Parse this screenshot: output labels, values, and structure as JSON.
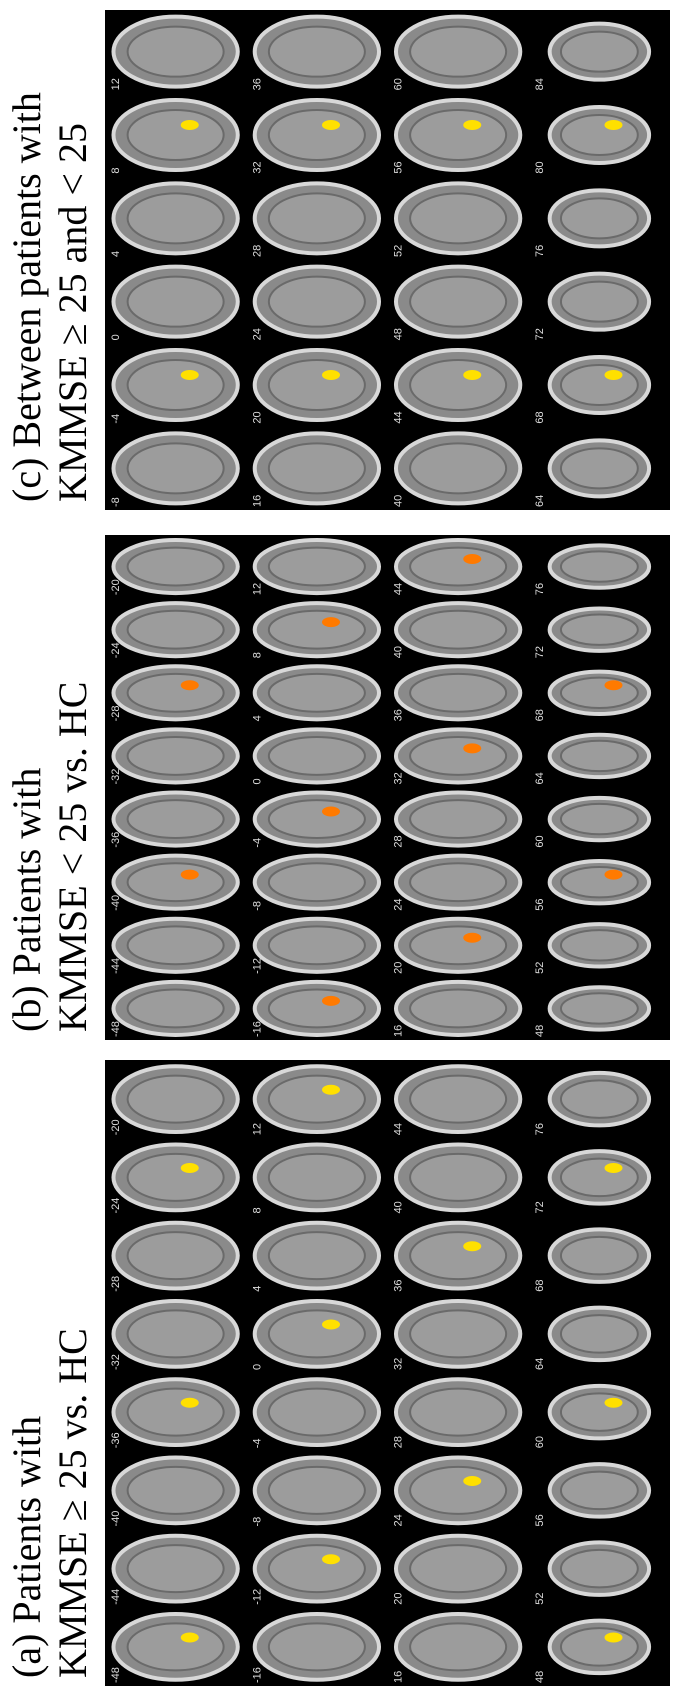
{
  "panels": [
    {
      "title": "(a) Patients with",
      "subtitle": "KMMSE ≥ 25 vs.  HC",
      "slices": [
        "-48",
        "-44",
        "-40",
        "-36",
        "-32",
        "-28",
        "-24",
        "-20",
        "-16",
        "-12",
        "-8",
        "-4",
        "0",
        "4",
        "8",
        "12",
        "16",
        "20",
        "24",
        "28",
        "32",
        "36",
        "40",
        "44",
        "48",
        "52",
        "56",
        "60",
        "64",
        "68",
        "72",
        "76"
      ]
    },
    {
      "title": "(b) Patients with",
      "subtitle": "KMMSE < 25 vs.  HC",
      "slices": [
        "-48",
        "-44",
        "-40",
        "-36",
        "-32",
        "-28",
        "-24",
        "-20",
        "-16",
        "-12",
        "-8",
        "-4",
        "0",
        "4",
        "8",
        "12",
        "16",
        "20",
        "24",
        "28",
        "32",
        "36",
        "40",
        "44",
        "48",
        "52",
        "56",
        "60",
        "64",
        "68",
        "72",
        "76"
      ]
    },
    {
      "title": "(c) Between patients with",
      "subtitle": "KMMSE ≥ 25 and < 25",
      "slices": [
        "-8",
        "-4",
        "0",
        "4",
        "8",
        "12",
        "16",
        "20",
        "24",
        "28",
        "32",
        "36",
        "40",
        "44",
        "48",
        "52",
        "56",
        "60",
        "64",
        "68",
        "72",
        "76",
        "80",
        "84"
      ]
    }
  ]
}
